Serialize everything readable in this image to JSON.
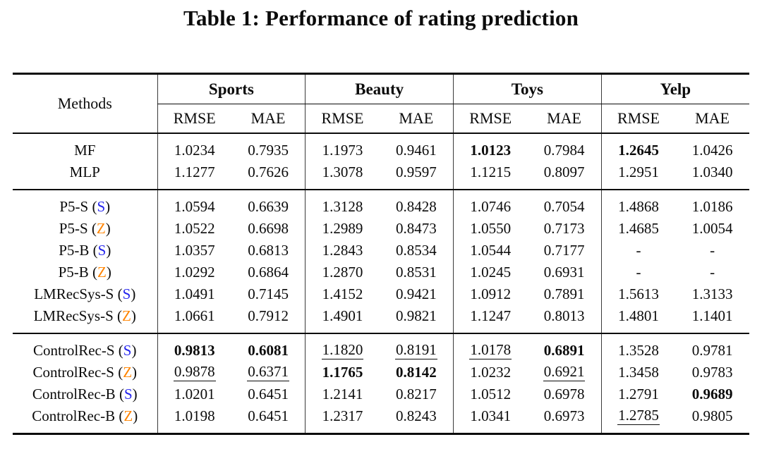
{
  "title": "Table 1: Performance of rating prediction",
  "colors": {
    "variant_s": "#2424ee",
    "variant_z": "#ff8400"
  },
  "table": {
    "methods_header": "Methods",
    "groups": [
      "Sports",
      "Beauty",
      "Toys",
      "Yelp"
    ],
    "metrics": [
      "RMSE",
      "MAE"
    ],
    "sections": [
      {
        "rows": [
          {
            "method": "MF",
            "variant": null,
            "cells": [
              {
                "v": "1.0234"
              },
              {
                "v": "0.7935"
              },
              {
                "v": "1.1973"
              },
              {
                "v": "0.9461"
              },
              {
                "v": "1.0123",
                "b": true
              },
              {
                "v": "0.7984"
              },
              {
                "v": "1.2645",
                "b": true
              },
              {
                "v": "1.0426"
              }
            ]
          },
          {
            "method": "MLP",
            "variant": null,
            "cells": [
              {
                "v": "1.1277"
              },
              {
                "v": "0.7626"
              },
              {
                "v": "1.3078"
              },
              {
                "v": "0.9597"
              },
              {
                "v": "1.1215"
              },
              {
                "v": "0.8097"
              },
              {
                "v": "1.2951"
              },
              {
                "v": "1.0340"
              }
            ]
          }
        ]
      },
      {
        "rows": [
          {
            "method": "P5-S",
            "variant": "S",
            "cells": [
              {
                "v": "1.0594"
              },
              {
                "v": "0.6639"
              },
              {
                "v": "1.3128"
              },
              {
                "v": "0.8428"
              },
              {
                "v": "1.0746"
              },
              {
                "v": "0.7054"
              },
              {
                "v": "1.4868"
              },
              {
                "v": "1.0186"
              }
            ]
          },
          {
            "method": "P5-S",
            "variant": "Z",
            "cells": [
              {
                "v": "1.0522"
              },
              {
                "v": "0.6698"
              },
              {
                "v": "1.2989"
              },
              {
                "v": "0.8473"
              },
              {
                "v": "1.0550"
              },
              {
                "v": "0.7173"
              },
              {
                "v": "1.4685"
              },
              {
                "v": "1.0054"
              }
            ]
          },
          {
            "method": "P5-B",
            "variant": "S",
            "cells": [
              {
                "v": "1.0357"
              },
              {
                "v": "0.6813"
              },
              {
                "v": "1.2843"
              },
              {
                "v": "0.8534"
              },
              {
                "v": "1.0544"
              },
              {
                "v": "0.7177"
              },
              {
                "v": "-"
              },
              {
                "v": "-"
              }
            ]
          },
          {
            "method": "P5-B",
            "variant": "Z",
            "cells": [
              {
                "v": "1.0292"
              },
              {
                "v": "0.6864"
              },
              {
                "v": "1.2870"
              },
              {
                "v": "0.8531"
              },
              {
                "v": "1.0245"
              },
              {
                "v": "0.6931"
              },
              {
                "v": "-"
              },
              {
                "v": "-"
              }
            ]
          },
          {
            "method": "LMRecSys-S",
            "variant": "S",
            "cells": [
              {
                "v": "1.0491"
              },
              {
                "v": "0.7145"
              },
              {
                "v": "1.4152"
              },
              {
                "v": "0.9421"
              },
              {
                "v": "1.0912"
              },
              {
                "v": "0.7891"
              },
              {
                "v": "1.5613"
              },
              {
                "v": "1.3133"
              }
            ]
          },
          {
            "method": "LMRecSys-S",
            "variant": "Z",
            "cells": [
              {
                "v": "1.0661"
              },
              {
                "v": "0.7912"
              },
              {
                "v": "1.4901"
              },
              {
                "v": "0.9821"
              },
              {
                "v": "1.1247"
              },
              {
                "v": "0.8013"
              },
              {
                "v": "1.4801"
              },
              {
                "v": "1.1401"
              }
            ]
          }
        ]
      },
      {
        "rows": [
          {
            "method": "ControlRec-S",
            "variant": "S",
            "cells": [
              {
                "v": "0.9813",
                "b": true
              },
              {
                "v": "0.6081",
                "b": true
              },
              {
                "v": "1.1820",
                "u": true
              },
              {
                "v": "0.8191",
                "u": true
              },
              {
                "v": "1.0178",
                "u": true
              },
              {
                "v": "0.6891",
                "b": true
              },
              {
                "v": "1.3528"
              },
              {
                "v": "0.9781"
              }
            ]
          },
          {
            "method": "ControlRec-S",
            "variant": "Z",
            "cells": [
              {
                "v": "0.9878",
                "u": true
              },
              {
                "v": "0.6371",
                "u": true
              },
              {
                "v": "1.1765",
                "b": true
              },
              {
                "v": "0.8142",
                "b": true
              },
              {
                "v": "1.0232"
              },
              {
                "v": "0.6921",
                "u": true
              },
              {
                "v": "1.3458"
              },
              {
                "v": "0.9783"
              }
            ]
          },
          {
            "method": "ControlRec-B",
            "variant": "S",
            "cells": [
              {
                "v": "1.0201"
              },
              {
                "v": "0.6451"
              },
              {
                "v": "1.2141"
              },
              {
                "v": "0.8217"
              },
              {
                "v": "1.0512"
              },
              {
                "v": "0.6978"
              },
              {
                "v": "1.2791"
              },
              {
                "v": "0.9689",
                "b": true
              }
            ]
          },
          {
            "method": "ControlRec-B",
            "variant": "Z",
            "cells": [
              {
                "v": "1.0198"
              },
              {
                "v": "0.6451"
              },
              {
                "v": "1.2317"
              },
              {
                "v": "0.8243"
              },
              {
                "v": "1.0341"
              },
              {
                "v": "0.6973"
              },
              {
                "v": "1.2785",
                "u": true
              },
              {
                "v": "0.9805"
              }
            ]
          }
        ]
      }
    ]
  }
}
